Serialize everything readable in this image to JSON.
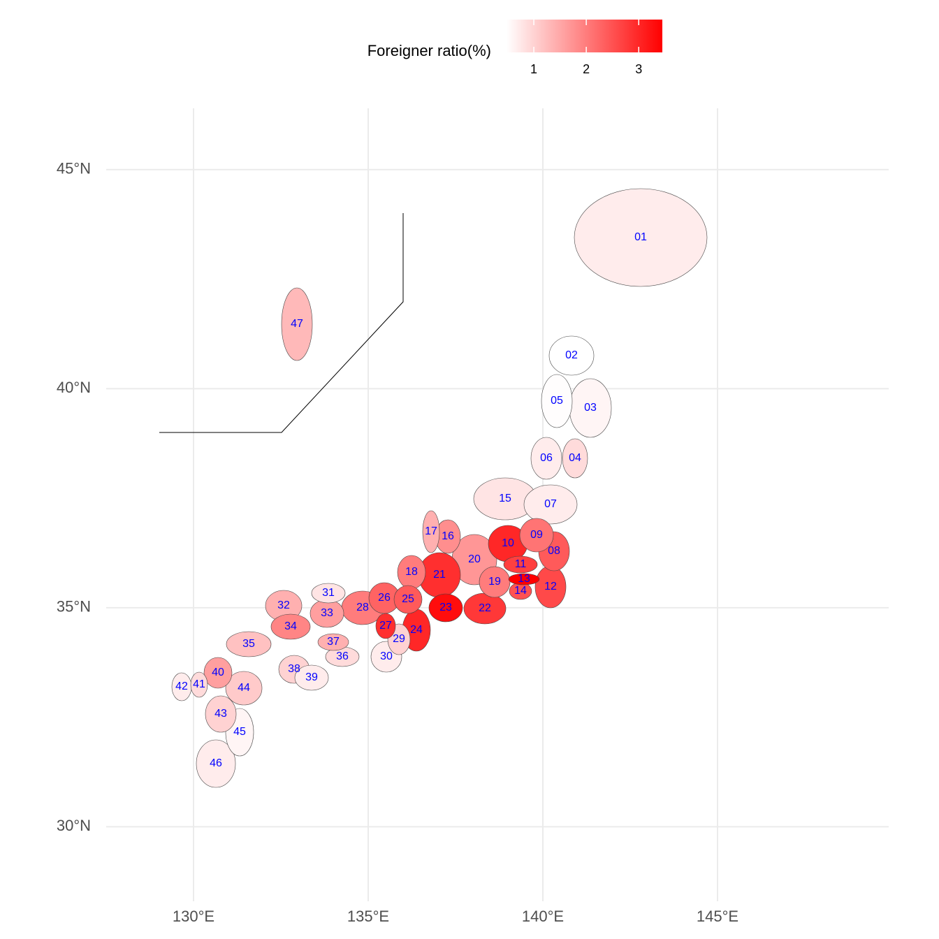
{
  "chart_data": {
    "type": "choropleth",
    "legend": {
      "title": "Foreigner ratio(%)",
      "ticks": [
        1,
        2,
        3
      ],
      "lim": [
        0.48,
        3.45
      ],
      "colors": [
        "#ffffff",
        "#ff0000"
      ]
    },
    "xlim": [
      127.5,
      149.9
    ],
    "ylim": [
      28.3,
      46.4
    ],
    "xticks": [
      {
        "value": 130,
        "label": "130°E"
      },
      {
        "value": 135,
        "label": "135°E"
      },
      {
        "value": 140,
        "label": "140°E"
      },
      {
        "value": 145,
        "label": "145°E"
      }
    ],
    "yticks": [
      {
        "value": 30,
        "label": "30°N"
      },
      {
        "value": 35,
        "label": "35°N"
      },
      {
        "value": 40,
        "label": "40°N"
      },
      {
        "value": 45,
        "label": "45°N"
      }
    ],
    "grid": true,
    "label_color": "#0000ff",
    "categories": [
      "01",
      "02",
      "03",
      "04",
      "05",
      "06",
      "07",
      "08",
      "09",
      "10",
      "11",
      "12",
      "13",
      "14",
      "15",
      "16",
      "17",
      "18",
      "19",
      "20",
      "21",
      "22",
      "23",
      "24",
      "25",
      "26",
      "27",
      "28",
      "29",
      "30",
      "31",
      "32",
      "33",
      "34",
      "35",
      "36",
      "37",
      "38",
      "39",
      "40",
      "41",
      "42",
      "43",
      "44",
      "45",
      "46",
      "47"
    ],
    "values": [
      0.7,
      0.48,
      0.6,
      0.9,
      0.5,
      0.7,
      0.7,
      2.4,
      2.1,
      3.0,
      2.7,
      2.6,
      3.45,
      2.5,
      0.8,
      1.8,
      1.4,
      2.0,
      2.0,
      1.7,
      2.9,
      2.8,
      3.3,
      3.0,
      2.4,
      2.3,
      2.9,
      2.0,
      1.0,
      0.7,
      0.8,
      1.4,
      1.6,
      1.9,
      1.2,
      0.9,
      1.4,
      1.0,
      0.7,
      1.6,
      0.9,
      0.7,
      1.0,
      1.1,
      0.6,
      0.7,
      1.3
    ]
  }
}
